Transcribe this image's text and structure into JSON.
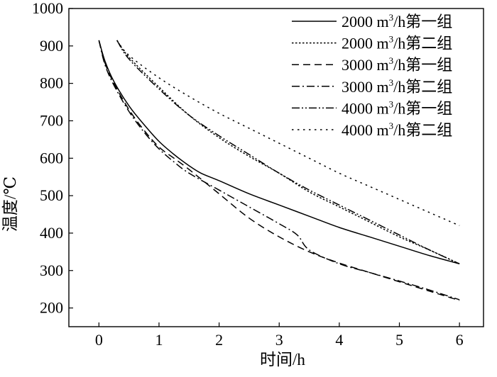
{
  "chart_data": {
    "type": "line",
    "title": "",
    "xlabel": "时间/h",
    "ylabel": "温度/℃",
    "xlim": [
      -0.5,
      6.4
    ],
    "ylim": [
      150,
      1000
    ],
    "xticks": [
      0,
      1,
      2,
      3,
      4,
      5,
      6
    ],
    "yticks": [
      200,
      300,
      400,
      500,
      600,
      700,
      800,
      900,
      1000
    ],
    "legend_position": "top-right",
    "grid": false,
    "series": [
      {
        "name": "2000 m³/h第一组",
        "label_pre": "2000 m",
        "label_sup": "3",
        "label_post": "/h第一组",
        "style": "solid",
        "x": [
          0,
          0.1,
          0.25,
          0.5,
          0.75,
          1.0,
          1.25,
          1.5,
          1.7,
          2.0,
          2.5,
          3.0,
          3.5,
          4.0,
          4.5,
          5.0,
          5.5,
          6.0
        ],
        "y": [
          915,
          860,
          805,
          740,
          690,
          645,
          610,
          580,
          560,
          540,
          505,
          475,
          445,
          415,
          390,
          365,
          340,
          318
        ]
      },
      {
        "name": "2000 m³/h第二组",
        "label_pre": "2000 m",
        "label_sup": "3",
        "label_post": "/h第二组",
        "style": "dotted",
        "x": [
          0.3,
          0.5,
          1.0,
          1.5,
          2.0,
          2.5,
          3.0,
          3.5,
          4.0,
          4.5,
          5.0,
          5.5,
          6.0
        ],
        "y": [
          915,
          870,
          790,
          715,
          655,
          605,
          560,
          510,
          470,
          430,
          390,
          355,
          318
        ]
      },
      {
        "name": "3000 m³/h第一组",
        "label_pre": "3000 m",
        "label_sup": "3",
        "label_post": "/h第一组",
        "style": "dashed",
        "x": [
          0,
          0.1,
          0.25,
          0.5,
          0.75,
          1.0,
          1.25,
          1.5,
          2.0,
          2.5,
          3.0,
          3.5,
          4.0,
          4.5,
          5.0,
          5.5,
          6.0
        ],
        "y": [
          915,
          855,
          800,
          730,
          675,
          630,
          600,
          570,
          505,
          440,
          390,
          350,
          320,
          295,
          270,
          245,
          220
        ]
      },
      {
        "name": "3000 m³/h第二组",
        "label_pre": "3000 m",
        "label_sup": "3",
        "label_post": "/h第二组",
        "style": "dashdot",
        "x": [
          0,
          0.1,
          0.25,
          0.5,
          0.75,
          1.0,
          1.25,
          1.5,
          2.0,
          2.5,
          3.0,
          3.3,
          3.5,
          4.0,
          4.5,
          5.0,
          5.5,
          6.0
        ],
        "y": [
          915,
          850,
          795,
          725,
          670,
          625,
          590,
          560,
          515,
          470,
          425,
          395,
          355,
          318,
          295,
          272,
          248,
          222
        ]
      },
      {
        "name": "4000 m³/h第一组",
        "label_pre": "4000 m",
        "label_sup": "3",
        "label_post": "/h第一组",
        "style": "dashdotdot",
        "x": [
          0.3,
          0.5,
          1.0,
          1.5,
          2.0,
          2.5,
          3.0,
          3.5,
          4.0,
          4.5,
          5.0,
          5.5,
          6.0
        ],
        "y": [
          915,
          865,
          785,
          715,
          660,
          610,
          560,
          515,
          475,
          435,
          395,
          355,
          318
        ]
      },
      {
        "name": "4000 m³/h第二组",
        "label_pre": "4000 m",
        "label_sup": "3",
        "label_post": "/h第二组",
        "style": "sparse-dotted",
        "x": [
          0.3,
          0.5,
          1.0,
          1.5,
          2.0,
          2.5,
          3.0,
          3.5,
          4.0,
          4.5,
          5.0,
          5.5,
          6.0
        ],
        "y": [
          915,
          875,
          815,
          765,
          720,
          680,
          640,
          600,
          560,
          525,
          490,
          455,
          420
        ]
      }
    ]
  }
}
